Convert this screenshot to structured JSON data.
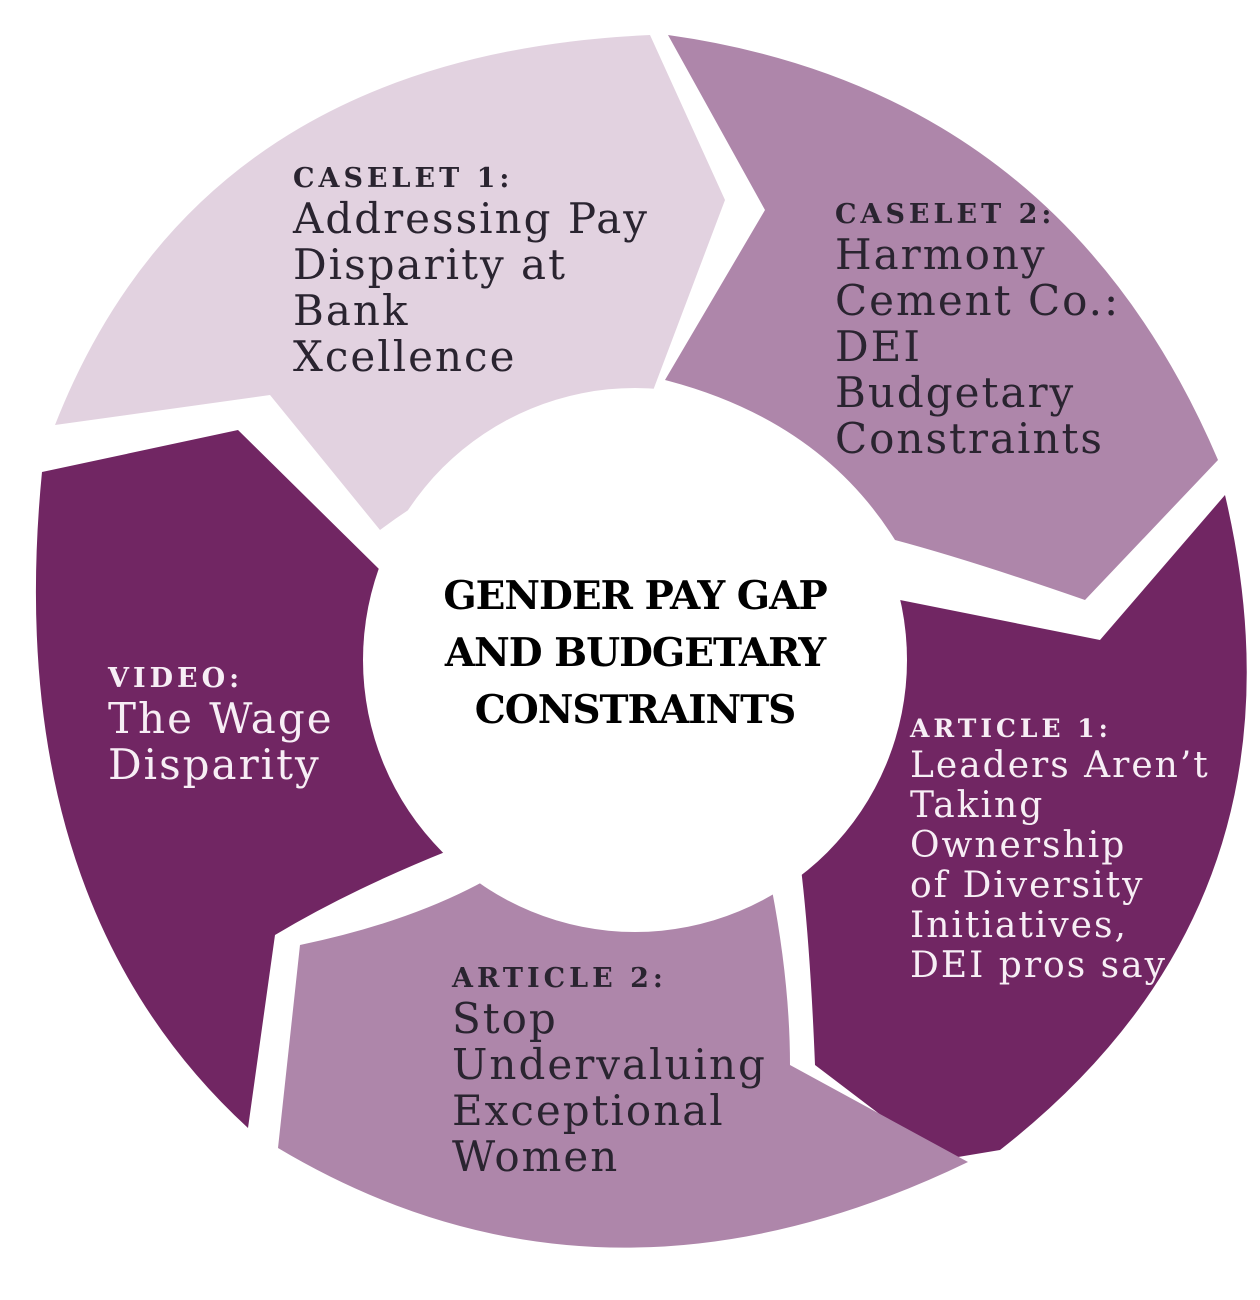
{
  "center": {
    "title": "GENDER PAY GAP\nAND BUDGETARY\nCONSTRAINTS"
  },
  "segments": [
    {
      "heading": "CASELET 1:",
      "body": "Addressing Pay\nDisparity at\nBank\nXcellence",
      "color": "#e2d2e0"
    },
    {
      "heading": "CASELET 2:",
      "body": "Harmony\nCement Co.:\nDEI\nBudgetary\nConstraints",
      "color": "#ae86aa"
    },
    {
      "heading": "ARTICLE 1:",
      "body": "Leaders Aren’t\nTaking\nOwnership\nof Diversity\nInitiatives,\nDEI pros say",
      "color": "#712663"
    },
    {
      "heading": "ARTICLE 2:",
      "body": "Stop\nUndervaluing\nExceptional\nWomen",
      "color": "#ae86aa"
    },
    {
      "heading": "VIDEO:",
      "body": "The Wage\nDisparity",
      "color": "#712663"
    }
  ]
}
